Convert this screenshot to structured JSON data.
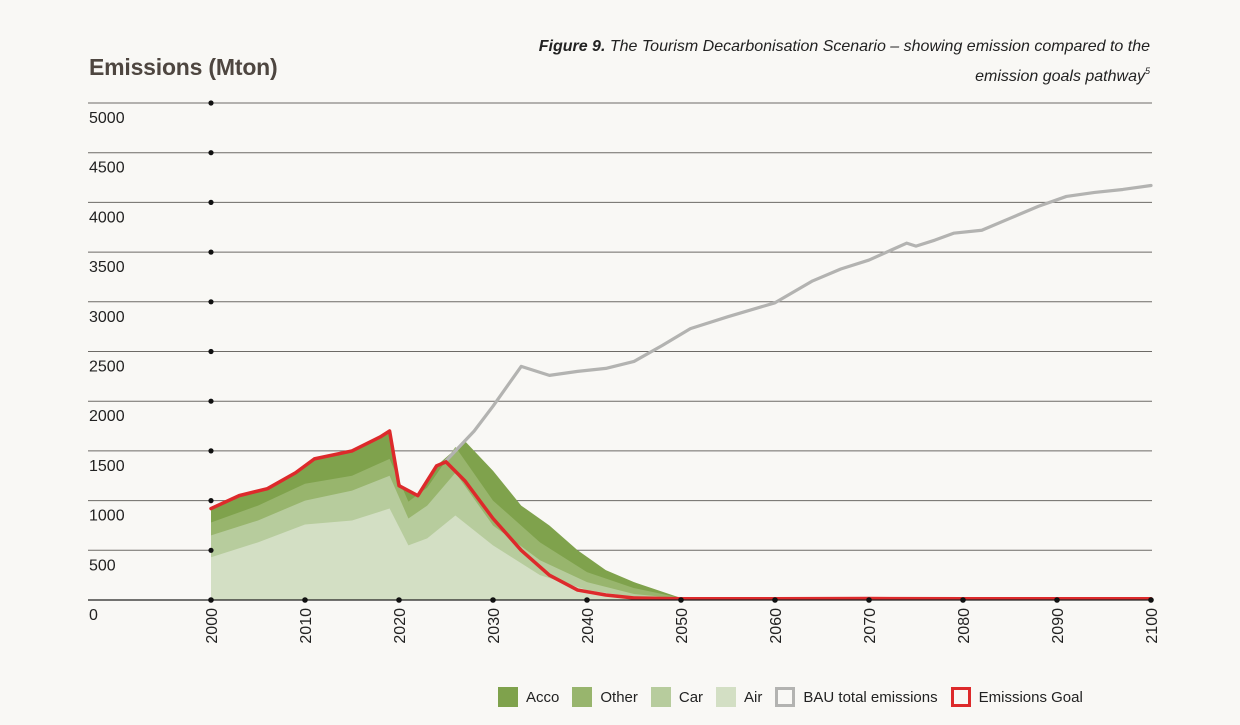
{
  "caption": {
    "figure_label": "Figure 9.",
    "text": "The Tourism Decarbonisation Scenario – showing emission compared to the emission goals pathway",
    "footnote": "5"
  },
  "chart_data": {
    "type": "area",
    "title": "Figure 9. The Tourism Decarbonisation Scenario – showing emission compared to the emission goals pathway",
    "ylabel": "Emissions (Mton)",
    "xlabel": "",
    "xlim": [
      2000,
      2100
    ],
    "ylim": [
      0,
      5000
    ],
    "x_ticks": [
      2000,
      2010,
      2020,
      2030,
      2040,
      2050,
      2060,
      2070,
      2080,
      2090,
      2100
    ],
    "y_ticks": [
      0,
      500,
      1000,
      1500,
      2000,
      2500,
      3000,
      3500,
      4000,
      4500,
      5000
    ],
    "grid": true,
    "legend_position": "bottom-right",
    "stacked_areas": [
      {
        "name": "Air",
        "color": "#d3dfc4",
        "x": [
          2000,
          2005,
          2010,
          2015,
          2019,
          2021,
          2023,
          2026,
          2030,
          2035,
          2040,
          2045,
          2050
        ],
        "cumulative_top": [
          430,
          580,
          760,
          800,
          920,
          550,
          620,
          850,
          550,
          250,
          100,
          30,
          10
        ]
      },
      {
        "name": "Car",
        "color": "#b7cc9d",
        "x": [
          2000,
          2005,
          2010,
          2015,
          2019,
          2021,
          2023,
          2026,
          2030,
          2035,
          2040,
          2045,
          2050
        ],
        "cumulative_top": [
          650,
          800,
          1000,
          1100,
          1250,
          820,
          950,
          1280,
          750,
          400,
          180,
          60,
          15
        ]
      },
      {
        "name": "Other",
        "color": "#98b56d",
        "x": [
          2000,
          2005,
          2010,
          2015,
          2019,
          2021,
          2023,
          2026,
          2030,
          2035,
          2040,
          2045,
          2050
        ],
        "cumulative_top": [
          780,
          950,
          1170,
          1250,
          1420,
          990,
          1130,
          1540,
          1000,
          580,
          280,
          120,
          20
        ]
      },
      {
        "name": "Acco",
        "color": "#7fa24c",
        "x": [
          2000,
          2003,
          2006,
          2009,
          2011,
          2015,
          2018,
          2019,
          2020,
          2022,
          2024,
          2027,
          2030,
          2033,
          2036,
          2039,
          2042,
          2045,
          2050
        ],
        "cumulative_top": [
          920,
          1050,
          1120,
          1280,
          1420,
          1500,
          1640,
          1700,
          1150,
          1050,
          1350,
          1600,
          1300,
          950,
          750,
          500,
          300,
          180,
          20
        ]
      }
    ],
    "series": [
      {
        "name": "BAU total emissions",
        "color": "#b3b3b1",
        "x": [
          2025,
          2028,
          2030,
          2033,
          2036,
          2039,
          2042,
          2045,
          2048,
          2051,
          2055,
          2060,
          2064,
          2067,
          2070,
          2074,
          2075,
          2077,
          2079,
          2082,
          2085,
          2088,
          2091,
          2094,
          2097,
          2100
        ],
        "y": [
          1400,
          1700,
          1950,
          2350,
          2260,
          2300,
          2330,
          2400,
          2560,
          2730,
          2850,
          2990,
          3210,
          3330,
          3420,
          3590,
          3560,
          3620,
          3690,
          3720,
          3840,
          3960,
          4060,
          4100,
          4130,
          4170
        ]
      },
      {
        "name": "Emissions Goal",
        "color": "#dd2a2b",
        "x": [
          2000,
          2003,
          2006,
          2009,
          2011,
          2015,
          2018,
          2019,
          2020,
          2022,
          2024,
          2025,
          2027,
          2030,
          2033,
          2036,
          2039,
          2042,
          2045,
          2050,
          2060,
          2070,
          2080,
          2090,
          2100
        ],
        "y": [
          920,
          1050,
          1120,
          1280,
          1420,
          1500,
          1640,
          1700,
          1150,
          1050,
          1350,
          1390,
          1200,
          820,
          500,
          250,
          100,
          50,
          20,
          12,
          12,
          15,
          12,
          12,
          12
        ]
      }
    ]
  },
  "legend": [
    {
      "label": "Acco",
      "kind": "fill",
      "color": "#7fa24c"
    },
    {
      "label": "Other",
      "kind": "fill",
      "color": "#98b56d"
    },
    {
      "label": "Car",
      "kind": "fill",
      "color": "#b7cc9d"
    },
    {
      "label": "Air",
      "kind": "fill",
      "color": "#d3dfc4"
    },
    {
      "label": "BAU total emissions",
      "kind": "outline",
      "color": "#b3b3b1"
    },
    {
      "label": "Emissions Goal",
      "kind": "outline",
      "color": "#dd2a2b"
    }
  ]
}
